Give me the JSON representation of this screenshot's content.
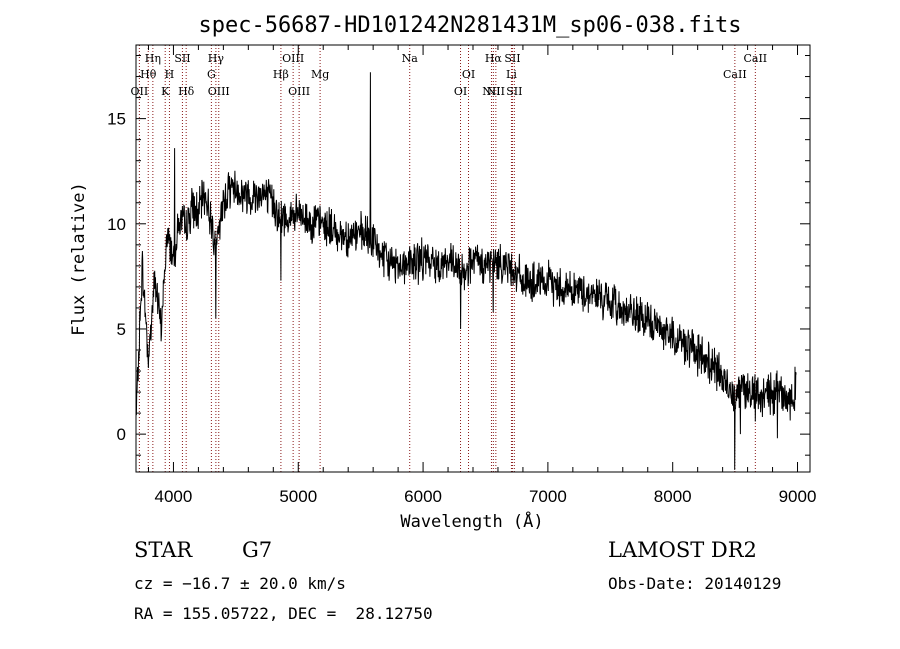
{
  "chart_data": {
    "type": "line",
    "title": "spec-56687-HD101242N281431M_sp06-038.fits",
    "xlabel": "Wavelength (Å)",
    "ylabel": "Flux (relative)",
    "xlim": [
      3700,
      9100
    ],
    "ylim": [
      -1.8,
      18.5
    ],
    "xticks": [
      4000,
      5000,
      6000,
      7000,
      8000,
      9000
    ],
    "yticks": [
      0,
      5,
      10,
      15
    ],
    "grid": false,
    "spectrum": {
      "x": [
        3700,
        3750,
        3800,
        3850,
        3900,
        3950,
        4000,
        4050,
        4100,
        4150,
        4200,
        4250,
        4300,
        4350,
        4400,
        4450,
        4500,
        4550,
        4600,
        4650,
        4700,
        4750,
        4800,
        4850,
        4900,
        4950,
        5000,
        5100,
        5200,
        5300,
        5400,
        5500,
        5600,
        5700,
        5800,
        5900,
        6000,
        6100,
        6200,
        6300,
        6400,
        6500,
        6600,
        6700,
        6800,
        6900,
        7000,
        7100,
        7200,
        7300,
        7400,
        7500,
        7600,
        7700,
        7800,
        7900,
        8000,
        8100,
        8200,
        8300,
        8400,
        8450,
        8500,
        8550,
        8600,
        8650,
        8700,
        8750,
        8800,
        8850,
        8900,
        8950,
        9000
      ],
      "y": [
        0.5,
        8.0,
        3.5,
        7.5,
        5.0,
        9.5,
        8.5,
        10.2,
        9.8,
        10.8,
        10.5,
        11.5,
        10.2,
        9.0,
        11.0,
        11.8,
        11.7,
        11.4,
        11.4,
        11.3,
        11.6,
        11.2,
        11.1,
        10.2,
        10.3,
        10.3,
        10.4,
        10.1,
        10.0,
        9.6,
        9.4,
        9.5,
        9.2,
        8.2,
        8.1,
        8.1,
        8.3,
        8.1,
        8.2,
        7.7,
        8.2,
        8.0,
        8.2,
        8.0,
        7.3,
        7.1,
        7.2,
        7.0,
        6.9,
        6.7,
        6.6,
        6.2,
        6.0,
        5.6,
        5.3,
        5.1,
        4.7,
        4.3,
        3.8,
        3.4,
        2.6,
        2.2,
        2.0,
        2.4,
        2.0,
        2.2,
        1.5,
        2.1,
        1.8,
        2.6,
        1.6,
        1.5,
        2.6
      ]
    },
    "features": [
      {
        "x": 4010,
        "y": 13.6
      },
      {
        "x": 4340,
        "y": 5.5
      },
      {
        "x": 4860,
        "y": 7.3
      },
      {
        "x": 5577,
        "y": 17.2
      },
      {
        "x": 6300,
        "y": 5.0
      },
      {
        "x": 6563,
        "y": 5.8
      },
      {
        "x": 8498,
        "y": -1.7
      },
      {
        "x": 8542,
        "y": 0.0
      },
      {
        "x": 8662,
        "y": 0.6
      },
      {
        "x": 8840,
        "y": -0.2
      }
    ],
    "lines": [
      {
        "name": "OII",
        "x": 3727,
        "row": 3
      },
      {
        "name": "Hθ",
        "x": 3798,
        "row": 2
      },
      {
        "name": "Hη",
        "x": 3835,
        "row": 1
      },
      {
        "name": "K",
        "x": 3934,
        "row": 3
      },
      {
        "name": "H",
        "x": 3968,
        "row": 2
      },
      {
        "name": "SII",
        "x": 4072,
        "row": 1
      },
      {
        "name": "Hδ",
        "x": 4102,
        "row": 3
      },
      {
        "name": "G",
        "x": 4304,
        "row": 2
      },
      {
        "name": "Hγ",
        "x": 4340,
        "row": 1
      },
      {
        "name": "OIII",
        "x": 4363,
        "row": 3
      },
      {
        "name": "Hβ",
        "x": 4861,
        "row": 2
      },
      {
        "name": "OIII",
        "x": 4959,
        "row": 1
      },
      {
        "name": "OIII",
        "x": 5007,
        "row": 3
      },
      {
        "name": "Mg",
        "x": 5175,
        "row": 2
      },
      {
        "name": "Na",
        "x": 5893,
        "row": 1
      },
      {
        "name": "OI",
        "x": 6300,
        "row": 3
      },
      {
        "name": "OI",
        "x": 6364,
        "row": 2
      },
      {
        "name": "NII",
        "x": 6548,
        "row": 3
      },
      {
        "name": "Hα",
        "x": 6563,
        "row": 1
      },
      {
        "name": "NII",
        "x": 6583,
        "row": 3
      },
      {
        "name": "Li",
        "x": 6708,
        "row": 2
      },
      {
        "name": "SII",
        "x": 6716,
        "row": 1
      },
      {
        "name": "SII",
        "x": 6731,
        "row": 3
      },
      {
        "name": "CaII",
        "x": 8498,
        "row": 2
      },
      {
        "name": "CaII",
        "x": 8662,
        "row": 1
      }
    ]
  },
  "info": {
    "object_class": "STAR",
    "subclass": "G7",
    "survey": "LAMOST DR2",
    "redshift": "cz = −16.7 ± 20.0 km/s",
    "obs_date": "Obs-Date: 20140129",
    "coords": "RA = 155.05722, DEC =  28.12750"
  },
  "colors": {
    "spectrum": "#000000",
    "line_markers": "#8b1a1a"
  }
}
